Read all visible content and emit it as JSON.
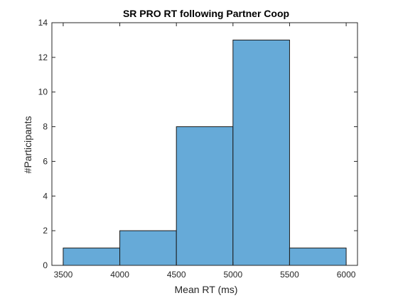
{
  "chart_data": {
    "type": "bar",
    "subtype": "histogram",
    "title": "SR PRO RT following Partner Coop",
    "xlabel": "Mean RT (ms)",
    "ylabel": "#Participants",
    "xlim": [
      3400,
      6100
    ],
    "ylim": [
      0,
      14
    ],
    "x_ticks": [
      3500,
      4000,
      4500,
      5000,
      5500,
      6000
    ],
    "y_ticks": [
      0,
      2,
      4,
      6,
      8,
      10,
      12,
      14
    ],
    "bin_edges": [
      3500,
      4000,
      4500,
      5000,
      5500,
      6000
    ],
    "values": [
      1,
      2,
      8,
      13,
      1
    ],
    "bar_color": "#66AAD8",
    "edge_color": "#1a1a1a",
    "grid": false,
    "box": true
  }
}
